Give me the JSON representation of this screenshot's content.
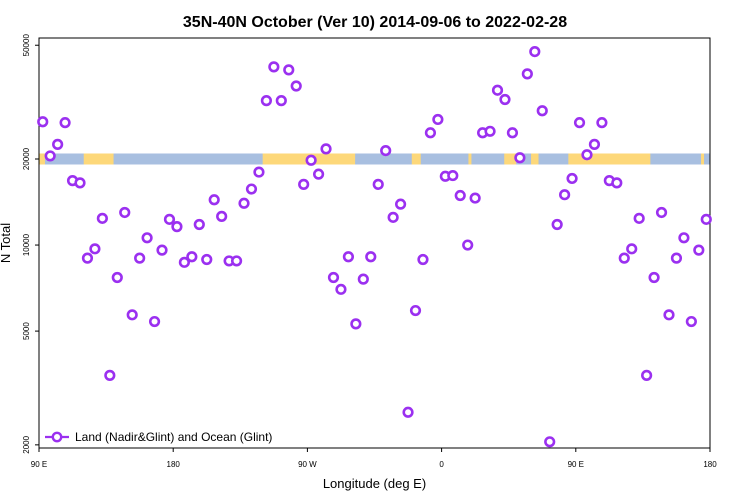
{
  "chart_data": {
    "type": "scatter",
    "title": "35N-40N October (Ver 10)   2014-09-06 to 2022-02-28",
    "xlabel": "Longitude (deg E)",
    "ylabel": "N Total",
    "x_axis": {
      "range_deg_east": [
        90,
        540
      ],
      "ticks": [
        {
          "value": 90,
          "label": "90 E"
        },
        {
          "value": 180,
          "label": "180"
        },
        {
          "value": 270,
          "label": "90 W"
        },
        {
          "value": 360,
          "label": "0"
        },
        {
          "value": 450,
          "label": "90 E"
        },
        {
          "value": 540,
          "label": "180"
        }
      ]
    },
    "y_axis": {
      "scale": "log",
      "range": [
        1950,
        53000
      ],
      "ticks": [
        {
          "value": 2000,
          "label": "2000"
        },
        {
          "value": 5000,
          "label": "5000"
        },
        {
          "value": 10000,
          "label": "10000"
        },
        {
          "value": 20000,
          "label": "20000"
        },
        {
          "value": 50000,
          "label": "50000"
        }
      ]
    },
    "grid": false,
    "legend": {
      "position": "bottom-left"
    },
    "land_ocean_band": {
      "y_value": 20000,
      "land_color": "#fdd87a",
      "ocean_color": "#a8bfe0",
      "land_segments": [
        [
          90,
          94
        ],
        [
          120,
          140
        ],
        [
          240,
          302
        ],
        [
          340,
          346
        ],
        [
          378,
          380
        ],
        [
          402,
          410
        ],
        [
          420,
          425
        ],
        [
          445,
          500
        ],
        [
          534,
          536
        ]
      ]
    },
    "series": [
      {
        "name": "Land (Nadir&Glint) and Ocean (Glint)",
        "color": "#9b30f0",
        "x": [
          92.5,
          97.5,
          102.5,
          107.5,
          112.5,
          117.5,
          122.5,
          127.5,
          132.5,
          137.5,
          142.5,
          147.5,
          152.5,
          157.5,
          162.5,
          167.5,
          172.5,
          177.5,
          182.5,
          187.5,
          192.5,
          197.5,
          202.5,
          207.5,
          212.5,
          217.5,
          222.5,
          227.5,
          232.5,
          237.5,
          242.5,
          247.5,
          252.5,
          257.5,
          262.5,
          267.5,
          272.5,
          277.5,
          282.5,
          287.5,
          292.5,
          297.5,
          302.5,
          307.5,
          312.5,
          317.5,
          322.5,
          327.5,
          332.5,
          337.5,
          342.5,
          347.5,
          352.5,
          357.5,
          362.5,
          367.5,
          372.5,
          377.5,
          382.5,
          387.5,
          392.5,
          397.5,
          402.5,
          407.5,
          412.5,
          417.5,
          422.5,
          427.5,
          432.5,
          437.5,
          442.5,
          447.5,
          452.5,
          457.5,
          462.5,
          467.5,
          472.5,
          477.5,
          482.5,
          487.5,
          492.5,
          497.5,
          502.5,
          507.5,
          512.5,
          517.5,
          522.5,
          527.5,
          532.5,
          537.5
        ],
        "y": [
          27000,
          20500,
          22500,
          26800,
          16800,
          16500,
          9000,
          9700,
          12400,
          3500,
          7700,
          13000,
          5700,
          9000,
          10600,
          5400,
          9600,
          12300,
          11600,
          8700,
          9100,
          11800,
          8900,
          14400,
          12600,
          8800,
          8800,
          14000,
          15700,
          18000,
          32000,
          42000,
          32000,
          41000,
          36000,
          16300,
          19800,
          17700,
          21700,
          7700,
          7000,
          9100,
          5300,
          7600,
          9100,
          16300,
          21400,
          12500,
          13900,
          2600,
          5900,
          8900,
          24700,
          27500,
          17400,
          17500,
          14900,
          10000,
          14600,
          24700,
          25000,
          34800,
          32300,
          24700,
          20200,
          39700,
          47500,
          29500,
          2050,
          11800,
          15000,
          17100,
          26800,
          20700,
          22500,
          26800,
          16800,
          16500,
          9000,
          9700,
          12400,
          3500,
          7700,
          13000,
          5700,
          9000,
          10600,
          5400,
          9600,
          12300
        ]
      }
    ]
  }
}
